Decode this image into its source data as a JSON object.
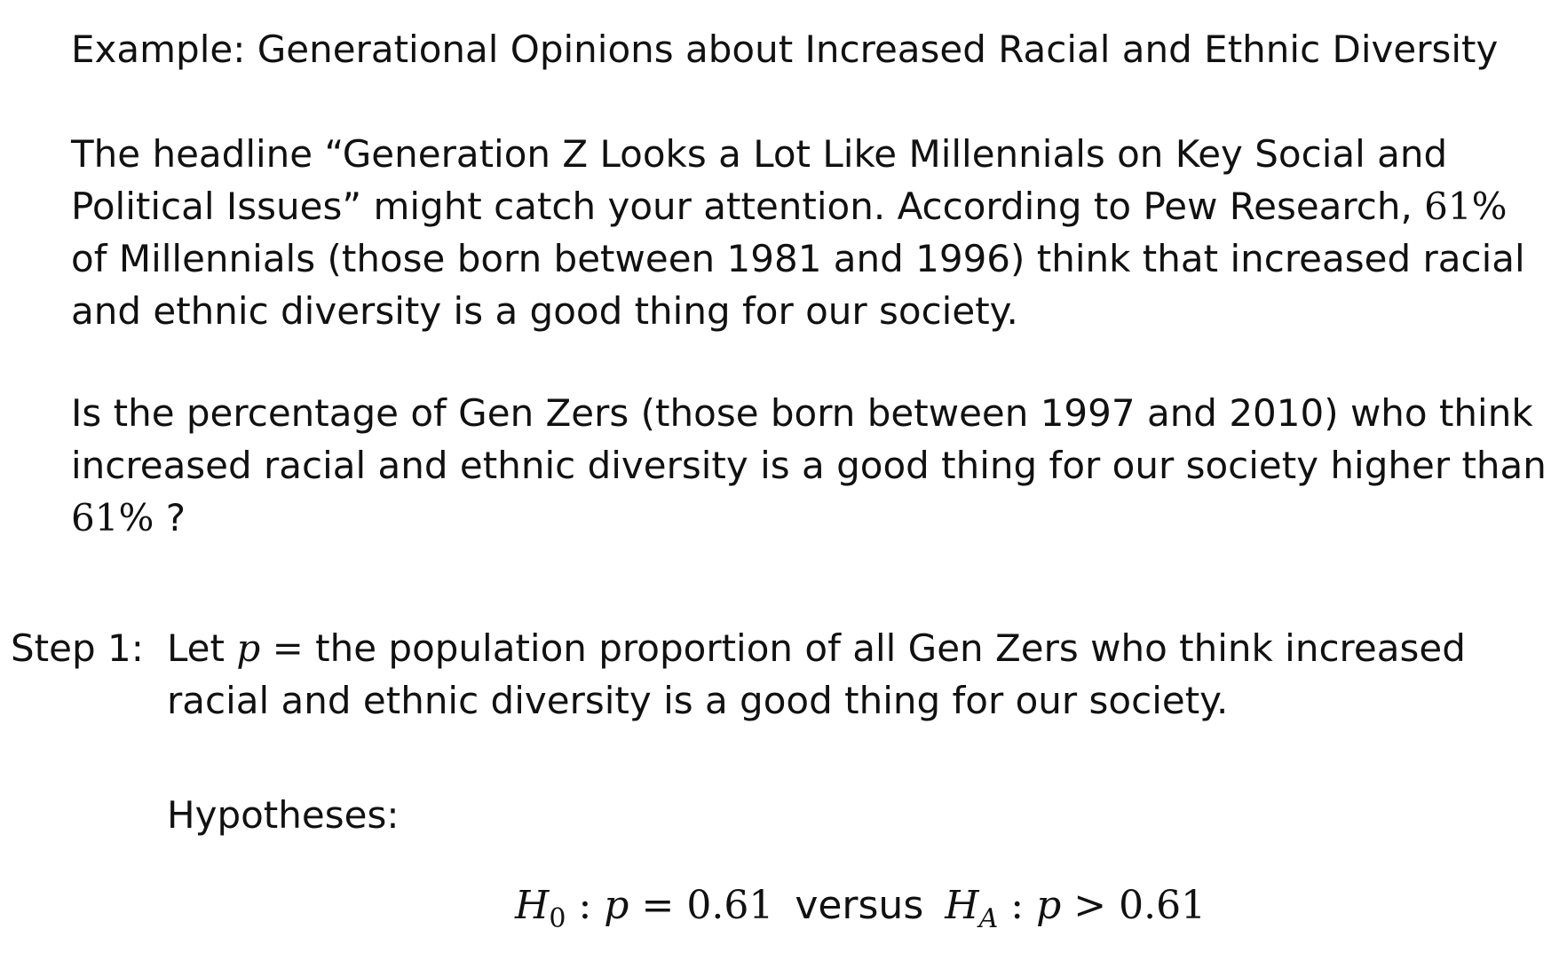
{
  "title": "Example: Generational Opinions about Increased Racial and Ethnic Diversity",
  "paragraph1": {
    "line1": "The headline “Generation Z Looks a Lot Like Millennials on Key Social and",
    "line2_text": "Political Issues” might catch your attention. According to Pew Research,",
    "line2_pct": "61%",
    "line3": "of Millennials (those born between 1981 and 1996) think that increased racial",
    "line4": "and ethnic diversity is a good thing for our society."
  },
  "paragraph2": {
    "line1": "Is the percentage of Gen Zers (those born between 1997 and 2010) who think",
    "line2": "increased racial and ethnic diversity is a good thing for our society higher than",
    "line3_pct": "61%",
    "line3_q": "?"
  },
  "step1": {
    "label": "Step 1:",
    "let": "Let",
    "var": "p",
    "eq": "=",
    "line1_rest": "the population proportion of all Gen Zers who think increased",
    "line2": "racial and ethnic diversity is a good thing for our society."
  },
  "hypotheses": {
    "label": "Hypotheses:",
    "h0_main": "H",
    "h0_sub": "0",
    "colon1": ":",
    "p1": "p",
    "eq1": "=",
    "val1": "0.61",
    "versus": "versus",
    "ha_main": "H",
    "ha_sub": "A",
    "colon2": ":",
    "p2": "p",
    "gt": ">",
    "val2": "0.61"
  }
}
